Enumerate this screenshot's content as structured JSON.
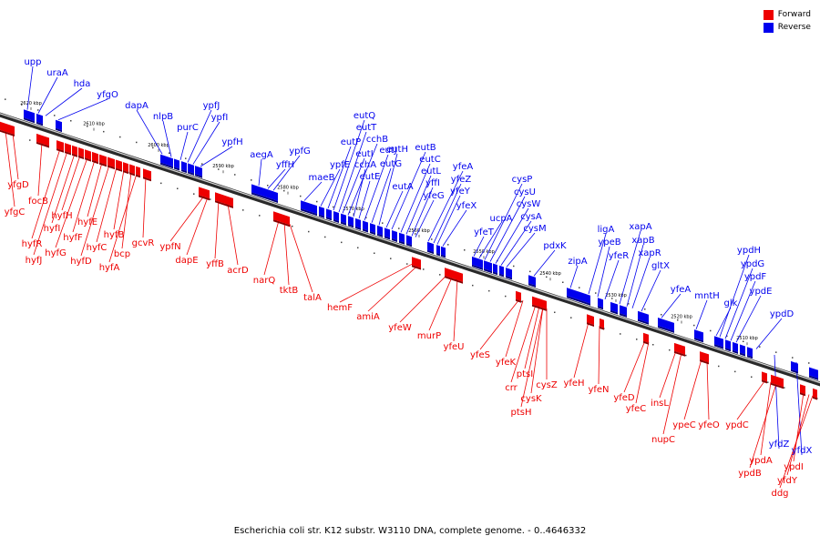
{
  "legend": {
    "forward_label": "Forward",
    "reverse_label": "Reverse",
    "forward_color": "#ee0000",
    "reverse_color": "#0000ee"
  },
  "caption": "Escherichia coli str. K12 substr. W3110 DNA, complete genome. - 0..4646332",
  "ticks": [
    "2620 kbp",
    "2610 kbp",
    "2600 kbp",
    "2590 kbp",
    "2580 kbp",
    "2570 kbp",
    "2560 kbp",
    "2550 kbp",
    "2540 kbp",
    "2530 kbp",
    "2520 kbp",
    "2510 kbp"
  ],
  "reverse_genes": [
    "upp",
    "uraA",
    "hda",
    "yfgO",
    "dapA",
    "nlpB",
    "purC",
    "ypfJ",
    "ypfI",
    "ypfH",
    "aegA",
    "yffH",
    "ypfG",
    "maeB",
    "ypfE",
    "eutP",
    "eutQ",
    "eutT",
    "eutI",
    "cchB",
    "cchA",
    "eutE",
    "eutJ",
    "eutG",
    "eutH",
    "eutA",
    "eutB",
    "eutC",
    "eutL",
    "yffI",
    "yfeG",
    "yfeA",
    "yfeZ",
    "yfeY",
    "yfeX",
    "yfeT",
    "ucpA",
    "cysP",
    "cysU",
    "cysW",
    "cysA",
    "cysM",
    "pdxK",
    "zipA",
    "ligA",
    "ypeB",
    "yfeR",
    "xapA",
    "xapB",
    "xapR",
    "gltX",
    "yfeA",
    "mntH",
    "glk",
    "ypdH",
    "ypdG",
    "ypdF",
    "ypdE",
    "ypdD",
    "yfdZ",
    "yfdX"
  ],
  "forward_genes": [
    "yfgD",
    "yfgC",
    "focB",
    "hyfR",
    "hyfJ",
    "hyfI",
    "hyfH",
    "hyfG",
    "hyfF",
    "hyfE",
    "hyfD",
    "hyfC",
    "hyfB",
    "bcp",
    "hyfA",
    "gcvR",
    "ypfN",
    "dapE",
    "yffB",
    "acrD",
    "narQ",
    "tktB",
    "talA",
    "hemF",
    "amiA",
    "yfeW",
    "murP",
    "yfeU",
    "yfeS",
    "yfeK",
    "crr",
    "ptsI",
    "cysK",
    "cysZ",
    "ptsH",
    "yfeH",
    "yfeN",
    "yfeD",
    "yfeC",
    "insL",
    "nupC",
    "ypeC",
    "yfeO",
    "ypdC",
    "ypdA",
    "ypdB",
    "ypdI",
    "yfdY",
    "ddg"
  ]
}
